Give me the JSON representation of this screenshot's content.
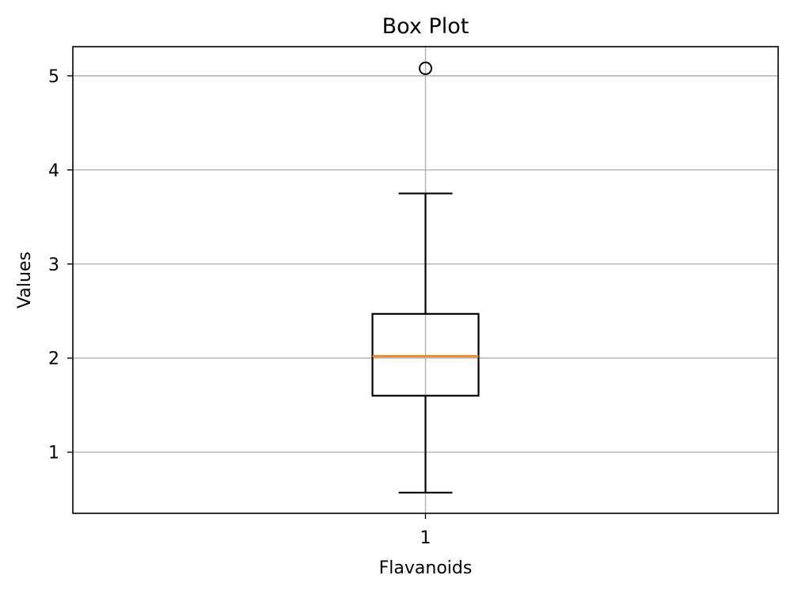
{
  "chart_data": {
    "type": "box",
    "title": "Box Plot",
    "xlabel": "Flavanoids",
    "ylabel": "Values",
    "categories": [
      "1"
    ],
    "yticks": [
      "1",
      "2",
      "3",
      "4",
      "5"
    ],
    "ylim": [
      0.35,
      5.31
    ],
    "grid": true,
    "series": [
      {
        "whisker_low": 0.57,
        "q1": 1.6,
        "median": 2.02,
        "q3": 2.47,
        "whisker_high": 3.75,
        "outliers": [
          5.08
        ]
      }
    ],
    "colors": {
      "box": "#000000",
      "median": "#ff7f0e",
      "grid": "#b0b0b0"
    }
  }
}
